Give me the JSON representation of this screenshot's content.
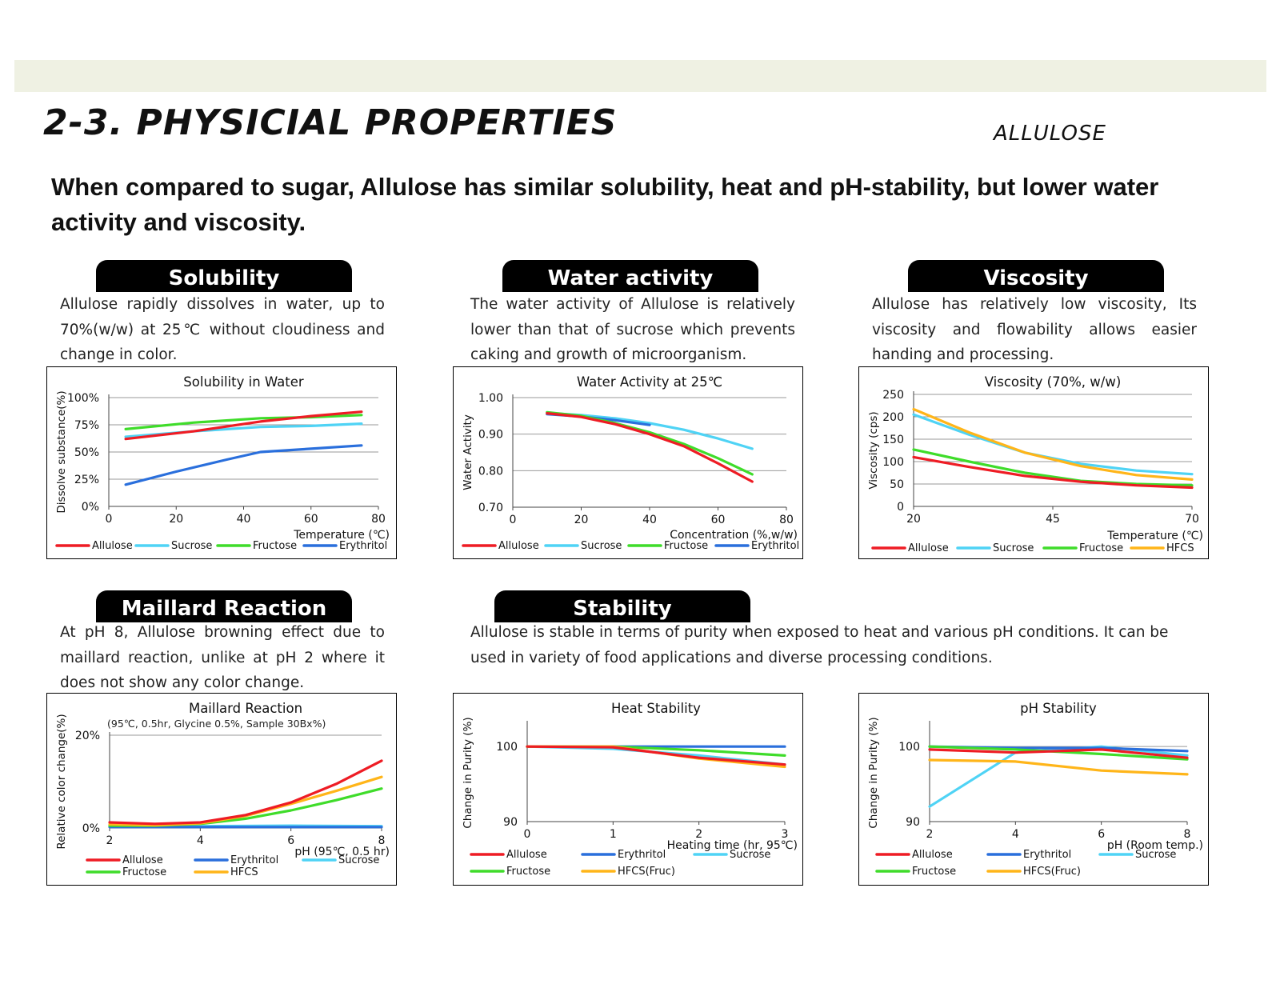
{
  "page": {
    "title": "2-3. PHYSICIAL PROPERTIES",
    "brand": "ALLULOSE",
    "headline": "When compared to sugar, Allulose has similar solubility, heat and pH-stability,  but lower water activity and viscosity."
  },
  "sections": {
    "solubility": {
      "title": "Solubility",
      "description": "Allulose rapidly dissolves in water, up to 70%(w/w) at 25℃ without cloudiness and change in color."
    },
    "water_activity": {
      "title": "Water activity",
      "description": "The water activity of Allulose is relatively lower than that of sucrose which prevents caking and growth of microorganism."
    },
    "viscosity": {
      "title": "Viscosity",
      "description": "Allulose has relatively low viscosity, Its viscosity and flowability allows easier handing and processing."
    },
    "maillard": {
      "title": "Maillard Reaction",
      "description": "At pH 8, Allulose browning effect due to maillard reaction, unlike at pH 2 where it does not show any color change."
    },
    "stability": {
      "title": "Stability",
      "description": "Allulose is stable in terms of purity when exposed to heat and various pH conditions. It can be used in variety of food applications and diverse processing conditions."
    }
  },
  "colors": {
    "Allulose": "#ee1c24",
    "Sucrose": "#4fd3f5",
    "Fructose": "#3fdc2a",
    "Erythritol": "#2a6fdc",
    "HFCS": "#ffb519",
    "HFCS(Fruc)": "#ffb519",
    "grid": "#9a9a9a"
  },
  "chart_data": [
    {
      "id": "solubility",
      "type": "line",
      "title": "Solubility in Water",
      "xlabel": "Temperature (℃)",
      "ylabel": "Dissolve substance(%)",
      "xlim": [
        0,
        80
      ],
      "ylim": [
        0,
        100
      ],
      "xticks": [
        0,
        20,
        40,
        60,
        80
      ],
      "yticks": [
        0,
        25,
        50,
        75,
        100
      ],
      "yticklabels": [
        "0%",
        "25%",
        "50%",
        "75%",
        "100%"
      ],
      "grid": true,
      "legend": "bottom",
      "series": [
        {
          "name": "Allulose",
          "x": [
            5,
            25,
            45,
            60,
            75
          ],
          "values": [
            62,
            69,
            78,
            83,
            87
          ]
        },
        {
          "name": "Sucrose",
          "x": [
            5,
            25,
            45,
            60,
            75
          ],
          "values": [
            64,
            69,
            73,
            74,
            76
          ]
        },
        {
          "name": "Fructose",
          "x": [
            5,
            25,
            45,
            60,
            75
          ],
          "values": [
            71,
            77,
            81,
            82,
            84
          ]
        },
        {
          "name": "Erythritol",
          "x": [
            5,
            20,
            35,
            45,
            60,
            75
          ],
          "values": [
            20,
            32,
            43,
            50,
            53,
            56
          ]
        }
      ]
    },
    {
      "id": "water_activity",
      "type": "line",
      "title": "Water Activity at 25℃",
      "xlabel": "Concentration (%,w/w)",
      "ylabel": "Water Activity",
      "xlim": [
        0,
        80
      ],
      "ylim": [
        0.7,
        1.0
      ],
      "xticks": [
        0,
        20,
        40,
        60,
        80
      ],
      "yticks": [
        0.7,
        0.8,
        0.9,
        1.0
      ],
      "yticklabels": [
        "0.70",
        "0.80",
        "0.90",
        "1.00"
      ],
      "grid": true,
      "legend": "bottom",
      "series": [
        {
          "name": "Allulose",
          "x": [
            10,
            20,
            30,
            40,
            50,
            60,
            70
          ],
          "values": [
            0.957,
            0.947,
            0.927,
            0.9,
            0.867,
            0.82,
            0.77
          ]
        },
        {
          "name": "Sucrose",
          "x": [
            10,
            20,
            30,
            40,
            50,
            60,
            70
          ],
          "values": [
            0.958,
            0.952,
            0.943,
            0.93,
            0.912,
            0.888,
            0.86
          ]
        },
        {
          "name": "Fructose",
          "x": [
            10,
            20,
            30,
            40,
            50,
            60,
            70
          ],
          "values": [
            0.96,
            0.95,
            0.93,
            0.905,
            0.873,
            0.834,
            0.79
          ]
        },
        {
          "name": "Erythritol",
          "x": [
            10,
            20,
            30,
            40
          ],
          "values": [
            0.955,
            0.948,
            0.938,
            0.925
          ]
        }
      ]
    },
    {
      "id": "viscosity",
      "type": "line",
      "title": "Viscosity (70%, w/w)",
      "xlabel": "Temperature (℃)",
      "ylabel": "Viscosity (cps)",
      "xlim": [
        20,
        70
      ],
      "ylim": [
        0,
        250
      ],
      "xticks": [
        20,
        45,
        70
      ],
      "yticks": [
        0,
        50,
        100,
        150,
        200,
        250
      ],
      "yticklabels": [
        "0",
        "50",
        "100",
        "150",
        "200",
        "250"
      ],
      "grid": true,
      "legend": "bottom",
      "series": [
        {
          "name": "Allulose",
          "x": [
            20,
            30,
            40,
            50,
            60,
            70
          ],
          "values": [
            110,
            88,
            68,
            55,
            47,
            42
          ]
        },
        {
          "name": "Sucrose",
          "x": [
            20,
            30,
            40,
            50,
            60,
            70
          ],
          "values": [
            205,
            160,
            120,
            95,
            80,
            72
          ]
        },
        {
          "name": "Fructose",
          "x": [
            20,
            30,
            40,
            50,
            60,
            70
          ],
          "values": [
            127,
            100,
            75,
            57,
            50,
            47
          ]
        },
        {
          "name": "HFCS",
          "x": [
            20,
            30,
            40,
            50,
            60,
            70
          ],
          "values": [
            217,
            165,
            120,
            90,
            70,
            60
          ]
        }
      ]
    },
    {
      "id": "maillard",
      "type": "line",
      "title": "Maillard Reaction",
      "subtitle": "(95℃, 0.5hr, Glycine 0.5%, Sample 30Bx%)",
      "xlabel": "pH (95℃, 0.5 hr)",
      "ylabel": "Relative color change(%)",
      "xlim": [
        2,
        8
      ],
      "ylim": [
        0,
        20
      ],
      "xticks": [
        2,
        4,
        6,
        8
      ],
      "yticks": [
        0,
        20
      ],
      "yticklabels": [
        "0%",
        "20%"
      ],
      "grid": true,
      "legend": "bottom",
      "series": [
        {
          "name": "Allulose",
          "x": [
            2,
            3,
            4,
            5,
            6,
            7,
            8
          ],
          "values": [
            1.2,
            0.9,
            1.2,
            2.8,
            5.5,
            9.5,
            14.5
          ]
        },
        {
          "name": "Erythritol",
          "x": [
            2,
            4,
            6,
            8
          ],
          "values": [
            0.2,
            0.2,
            0.2,
            0.2
          ]
        },
        {
          "name": "Sucrose",
          "x": [
            2,
            4,
            6,
            8
          ],
          "values": [
            0.4,
            0.4,
            0.5,
            0.4
          ]
        },
        {
          "name": "Fructose",
          "x": [
            2,
            3,
            4,
            5,
            6,
            7,
            8
          ],
          "values": [
            0.5,
            0.5,
            0.9,
            2.0,
            3.8,
            6.0,
            8.5
          ]
        },
        {
          "name": "HFCS",
          "x": [
            2,
            3,
            4,
            5,
            6,
            7,
            8
          ],
          "values": [
            0.8,
            0.6,
            1.0,
            2.6,
            5.2,
            8.0,
            11.0
          ]
        }
      ]
    },
    {
      "id": "heat_stability",
      "type": "line",
      "title": "Heat Stability",
      "xlabel": "Heating time (hr, 95℃)",
      "ylabel": "Change in Purity (%)",
      "xlim": [
        0,
        3
      ],
      "ylim": [
        90,
        103
      ],
      "xticks": [
        0,
        1,
        2,
        3
      ],
      "yticks": [
        90,
        100
      ],
      "yticklabels": [
        "90",
        "100"
      ],
      "grid": true,
      "legend": "bottom",
      "series": [
        {
          "name": "Allulose",
          "x": [
            0,
            1,
            2,
            3
          ],
          "values": [
            100,
            99.9,
            98.5,
            97.6
          ]
        },
        {
          "name": "Erythritol",
          "x": [
            0,
            1,
            2,
            3
          ],
          "values": [
            100,
            100,
            100,
            100
          ]
        },
        {
          "name": "Sucrose",
          "x": [
            0,
            1,
            2,
            3
          ],
          "values": [
            100,
            99.7,
            98.8,
            97.6
          ]
        },
        {
          "name": "Fructose",
          "x": [
            0,
            1,
            2,
            3
          ],
          "values": [
            100,
            100,
            99.5,
            98.8
          ]
        },
        {
          "name": "HFCS(Fruc)",
          "x": [
            0,
            1,
            2,
            3
          ],
          "values": [
            100,
            100,
            98.4,
            97.3
          ]
        }
      ]
    },
    {
      "id": "ph_stability",
      "type": "line",
      "title": "pH Stability",
      "xlabel": "pH (Room temp.)",
      "ylabel": "Change in Purity (%)",
      "xlim": [
        2,
        8
      ],
      "ylim": [
        90,
        103
      ],
      "xticks": [
        2,
        4,
        6,
        8
      ],
      "yticks": [
        90,
        100
      ],
      "yticklabels": [
        "90",
        "100"
      ],
      "grid": true,
      "legend": "bottom",
      "series": [
        {
          "name": "Allulose",
          "x": [
            2,
            4,
            6,
            8
          ],
          "values": [
            99.6,
            99.2,
            99.6,
            98.5
          ]
        },
        {
          "name": "Erythritol",
          "x": [
            2,
            4,
            6,
            8
          ],
          "values": [
            100,
            99.8,
            99.8,
            99.4
          ]
        },
        {
          "name": "Sucrose",
          "x": [
            2,
            4,
            6,
            8
          ],
          "values": [
            92,
            99.2,
            100,
            98.8
          ]
        },
        {
          "name": "Fructose",
          "x": [
            2,
            4,
            6,
            8
          ],
          "values": [
            100,
            99.6,
            99,
            98.3
          ]
        },
        {
          "name": "HFCS(Fruc)",
          "x": [
            2,
            4,
            6,
            8
          ],
          "values": [
            98.2,
            98,
            96.8,
            96.3
          ]
        }
      ]
    }
  ]
}
